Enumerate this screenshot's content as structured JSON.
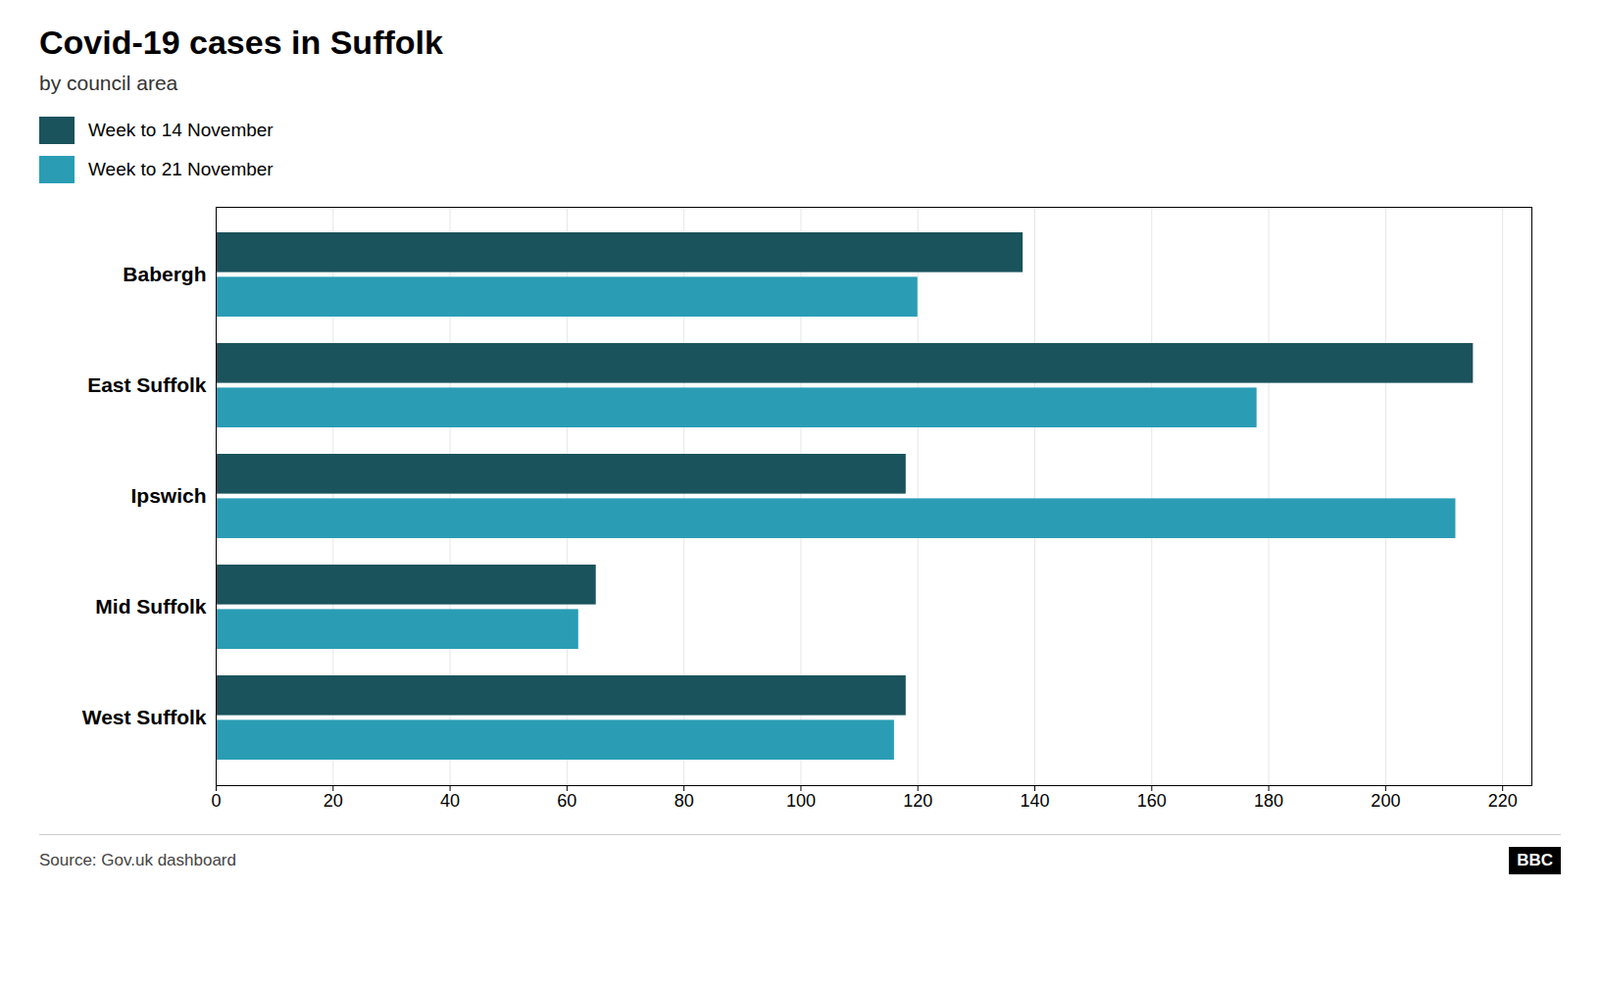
{
  "chart_data": {
    "type": "bar",
    "orientation": "horizontal",
    "title": "Covid-19 cases in Suffolk",
    "subtitle": "by council area",
    "source": "Source: Gov.uk dashboard",
    "annotations": [
      "BBC"
    ],
    "categories": [
      "Babergh",
      "East Suffolk",
      "Ipswich",
      "Mid Suffolk",
      "West Suffolk"
    ],
    "series": [
      {
        "name": "Week to 14 November",
        "color": "#1a535c",
        "values": [
          138,
          215,
          118,
          65,
          118
        ]
      },
      {
        "name": "Week to 21 November",
        "color": "#2a9db5",
        "values": [
          120,
          178,
          212,
          62,
          116
        ]
      }
    ],
    "xlim": [
      0,
      225
    ],
    "xticks": [
      0,
      20,
      40,
      60,
      80,
      100,
      120,
      140,
      160,
      180,
      200,
      220
    ],
    "grid": true,
    "legend": "top-left"
  }
}
